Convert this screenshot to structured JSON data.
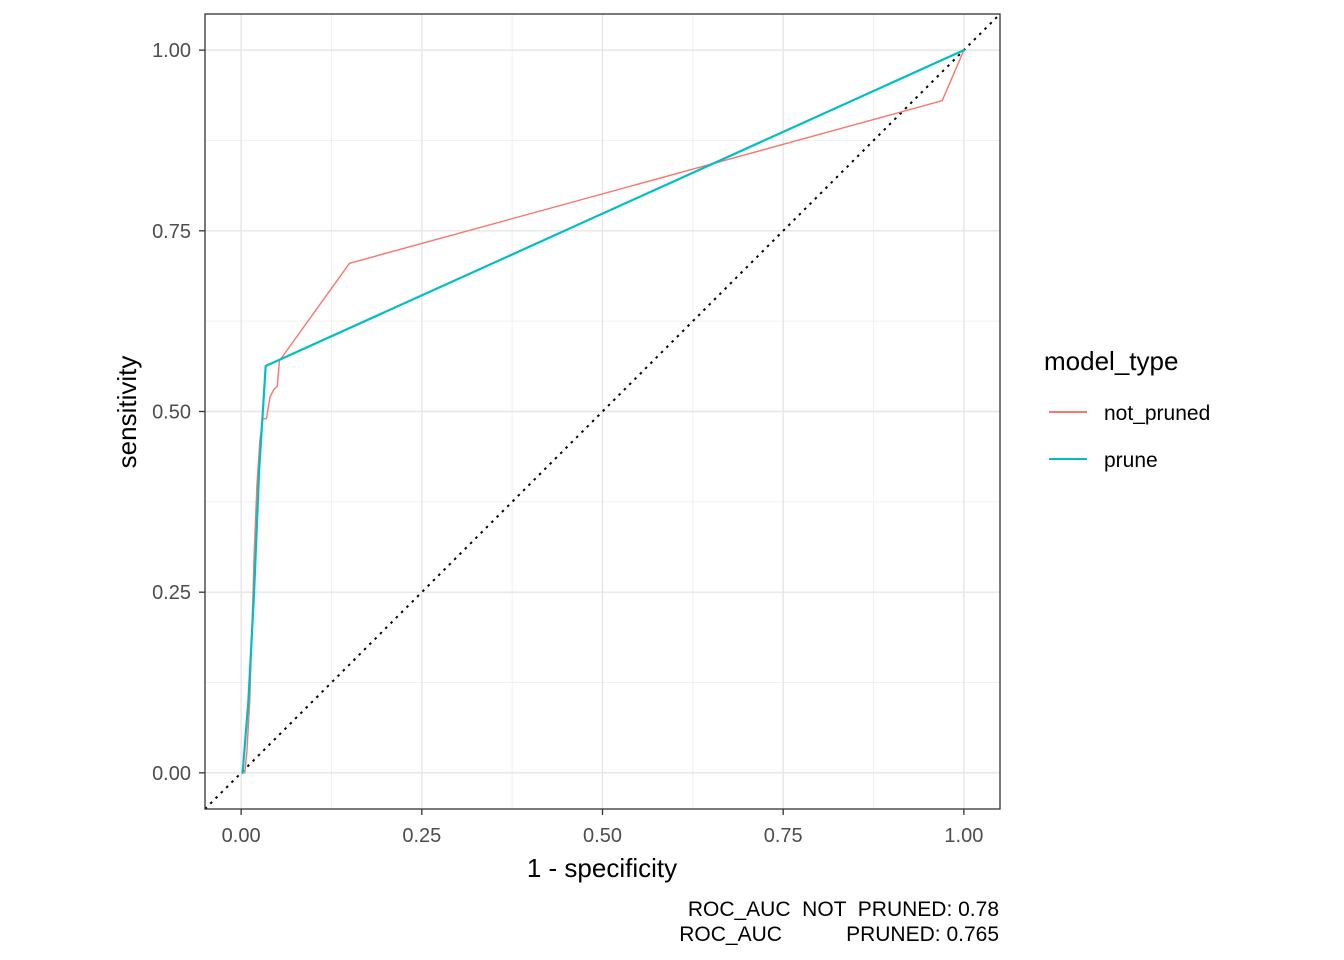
{
  "chart_data": {
    "type": "line",
    "xlabel": "1 - specificity",
    "ylabel": "sensitivity",
    "xlim": [
      -0.05,
      1.05
    ],
    "ylim": [
      -0.05,
      1.05
    ],
    "x_ticks": [
      0,
      0.25,
      0.5,
      0.75,
      1
    ],
    "x_tick_labels": [
      "0.00",
      "0.25",
      "0.50",
      "0.75",
      "1.00"
    ],
    "y_ticks": [
      0,
      0.25,
      0.5,
      0.75,
      1
    ],
    "y_tick_labels": [
      "0.00",
      "0.25",
      "0.50",
      "0.75",
      "1.00"
    ],
    "grid": true,
    "reference_line": {
      "style": "dotted",
      "color": "#000000",
      "points": [
        [
          -0.05,
          -0.05
        ],
        [
          1.05,
          1.05
        ]
      ]
    },
    "legend": {
      "title": "model_type",
      "position": "right"
    },
    "series": [
      {
        "name": "not_pruned",
        "color": "#F8766D",
        "points": [
          [
            0.005,
            0.0
          ],
          [
            0.008,
            0.03
          ],
          [
            0.012,
            0.1
          ],
          [
            0.015,
            0.2
          ],
          [
            0.018,
            0.3
          ],
          [
            0.022,
            0.4
          ],
          [
            0.026,
            0.46
          ],
          [
            0.03,
            0.49
          ],
          [
            0.035,
            0.49
          ],
          [
            0.04,
            0.52
          ],
          [
            0.045,
            0.53
          ],
          [
            0.05,
            0.535
          ],
          [
            0.053,
            0.57
          ],
          [
            0.15,
            0.705
          ],
          [
            0.97,
            0.93
          ],
          [
            1.0,
            1.0
          ]
        ]
      },
      {
        "name": "prune",
        "color": "#00BFC4",
        "points": [
          [
            0.002,
            0.0
          ],
          [
            0.01,
            0.1
          ],
          [
            0.018,
            0.25
          ],
          [
            0.025,
            0.42
          ],
          [
            0.034,
            0.563
          ],
          [
            1.0,
            1.0
          ]
        ]
      }
    ],
    "annotations": [
      {
        "label": "ROC_AUC  NOT  PRUNED: 0.78"
      },
      {
        "label": "ROC_AUC           PRUNED: 0.765"
      }
    ]
  }
}
